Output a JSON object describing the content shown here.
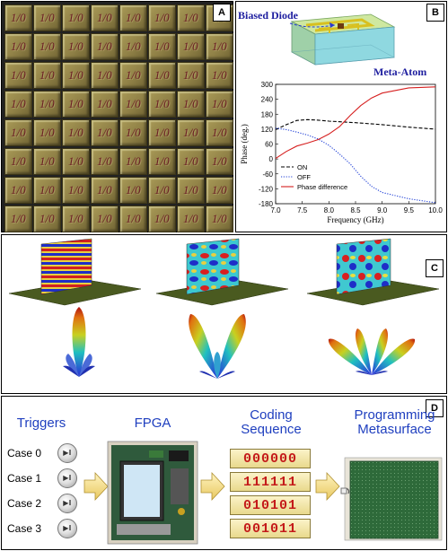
{
  "panel_a": {
    "label": "A",
    "tile_text": "1/0",
    "grid_rows": 8,
    "grid_cols": 8
  },
  "panel_b": {
    "label": "B",
    "diode_label": "Biased Diode",
    "meta_atom_label": "Meta-Atom",
    "colors": {
      "label_text": "#2020a0",
      "on": "#000000",
      "off": "#1f3fd6",
      "diff": "#d62020"
    }
  },
  "chart_data": {
    "type": "line",
    "xlabel": "Frequency (GHz)",
    "ylabel": "Phase (deg.)",
    "xlim": [
      7.0,
      10.0
    ],
    "ylim": [
      -180,
      300
    ],
    "xticks": [
      "7.0",
      "7.5",
      "8.0",
      "8.5",
      "9.0",
      "9.5",
      "10.0"
    ],
    "yticks": [
      "-180",
      "-120",
      "-60",
      "0",
      "60",
      "120",
      "180",
      "240",
      "300"
    ],
    "legend_position": "lower-left",
    "series": [
      {
        "name": "ON",
        "style": "dashed",
        "color": "#000000",
        "x": [
          7.0,
          7.2,
          7.4,
          7.6,
          7.8,
          8.0,
          8.5,
          9.0,
          9.5,
          10.0
        ],
        "y": [
          118,
          138,
          155,
          158,
          156,
          152,
          146,
          138,
          128,
          120
        ]
      },
      {
        "name": "OFF",
        "style": "dotted",
        "color": "#1f3fd6",
        "x": [
          7.0,
          7.2,
          7.4,
          7.6,
          7.8,
          8.0,
          8.2,
          8.4,
          8.6,
          8.8,
          9.0,
          9.5,
          10.0
        ],
        "y": [
          124,
          118,
          108,
          96,
          80,
          55,
          20,
          -20,
          -70,
          -110,
          -135,
          -160,
          -176
        ]
      },
      {
        "name": "Phase difference",
        "style": "solid",
        "color": "#d62020",
        "x": [
          7.0,
          7.2,
          7.4,
          7.6,
          7.8,
          8.0,
          8.2,
          8.4,
          8.6,
          8.8,
          9.0,
          9.5,
          10.0
        ],
        "y": [
          2,
          30,
          52,
          64,
          78,
          100,
          130,
          175,
          215,
          245,
          265,
          286,
          290
        ]
      }
    ]
  },
  "panel_c": {
    "label": "C"
  },
  "panel_d": {
    "label": "D",
    "triggers_title": "Triggers",
    "fpga_title": "FPGA",
    "coding_title": "Coding Sequence",
    "metasurface_title": "Programming Metasurface",
    "cases": [
      "Case 0",
      "Case 1",
      "Case 2",
      "Case 3"
    ],
    "sequences": [
      "000000",
      "111111",
      "010101",
      "001011"
    ],
    "button_icon": "play-pause-icon",
    "title_color": "#1f3fbf",
    "code_color": "#c41a1a"
  }
}
